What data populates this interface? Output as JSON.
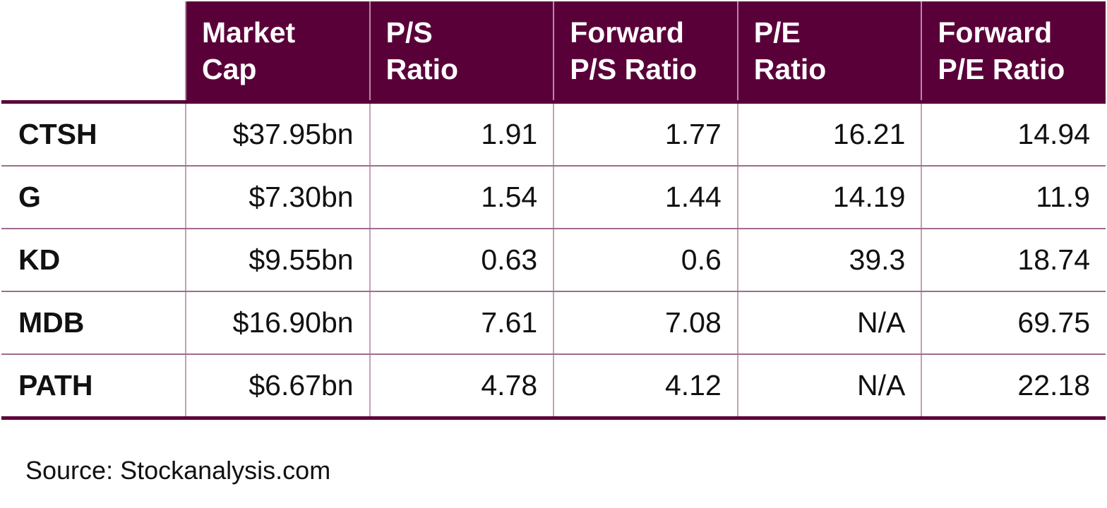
{
  "chart_data": {
    "type": "table",
    "columns": [
      "",
      "Market Cap",
      "P/S Ratio",
      "Forward P/S Ratio",
      "P/E Ratio",
      "Forward P/E Ratio"
    ],
    "header_lines": [
      [],
      [
        "Market",
        "Cap"
      ],
      [
        "P/S",
        "Ratio"
      ],
      [
        "Forward",
        "P/S Ratio"
      ],
      [
        "P/E",
        "Ratio"
      ],
      [
        "Forward",
        "P/E Ratio"
      ]
    ],
    "rows": [
      {
        "ticker": "CTSH",
        "market_cap": "$37.95bn",
        "ps_ratio": "1.91",
        "forward_ps_ratio": "1.77",
        "pe_ratio": "16.21",
        "forward_pe_ratio": "14.94"
      },
      {
        "ticker": "G",
        "market_cap": "$7.30bn",
        "ps_ratio": "1.54",
        "forward_ps_ratio": "1.44",
        "pe_ratio": "14.19",
        "forward_pe_ratio": "11.9"
      },
      {
        "ticker": "KD",
        "market_cap": "$9.55bn",
        "ps_ratio": "0.63",
        "forward_ps_ratio": "0.6",
        "pe_ratio": "39.3",
        "forward_pe_ratio": "18.74"
      },
      {
        "ticker": "MDB",
        "market_cap": "$16.90bn",
        "ps_ratio": "7.61",
        "forward_ps_ratio": "7.08",
        "pe_ratio": "N/A",
        "forward_pe_ratio": "69.75"
      },
      {
        "ticker": "PATH",
        "market_cap": "$6.67bn",
        "ps_ratio": "4.78",
        "forward_ps_ratio": "4.12",
        "pe_ratio": "N/A",
        "forward_pe_ratio": "22.18"
      }
    ],
    "source": "Source: Stockanalysis.com"
  },
  "colors": {
    "header_background": "#5a0039",
    "header_text": "#ffffff",
    "grid_line": "#a06b8e",
    "body_text": "#111111"
  }
}
